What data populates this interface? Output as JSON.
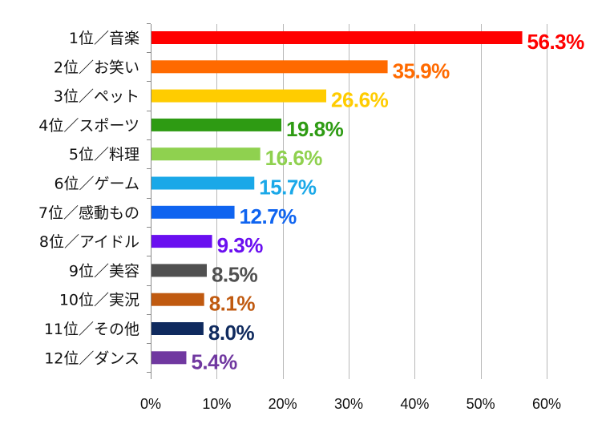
{
  "chart_data": {
    "type": "bar",
    "orientation": "horizontal",
    "categories": [
      "1位／音楽",
      "2位／お笑い",
      "3位／ペット",
      "4位／スポーツ",
      "5位／料理",
      "6位／ゲーム",
      "7位／感動もの",
      "8位／アイドル",
      "9位／美容",
      "10位／実況",
      "11位／その他",
      "12位／ダンス"
    ],
    "values": [
      56.3,
      35.9,
      26.6,
      19.8,
      16.6,
      15.7,
      12.7,
      9.3,
      8.5,
      8.1,
      8.0,
      5.4
    ],
    "value_labels": [
      "56.3%",
      "35.9%",
      "26.6%",
      "19.8%",
      "16.6%",
      "15.7%",
      "12.7%",
      "9.3%",
      "8.5%",
      "8.1%",
      "8.0%",
      "5.4%"
    ],
    "colors": [
      "#ff0000",
      "#ff6a00",
      "#ffcc00",
      "#2e9b13",
      "#8fd14f",
      "#1aa8e8",
      "#0f64f0",
      "#6a0ff0",
      "#505050",
      "#c05a10",
      "#0f2a5e",
      "#7038a0"
    ],
    "xlim": [
      0,
      60
    ],
    "x_ticks": [
      0,
      10,
      20,
      30,
      40,
      50,
      60
    ],
    "x_tick_labels": [
      "0%",
      "10%",
      "20%",
      "30%",
      "40%",
      "50%",
      "60%"
    ],
    "grid": "vertical",
    "title": "",
    "xlabel": "",
    "ylabel": ""
  }
}
